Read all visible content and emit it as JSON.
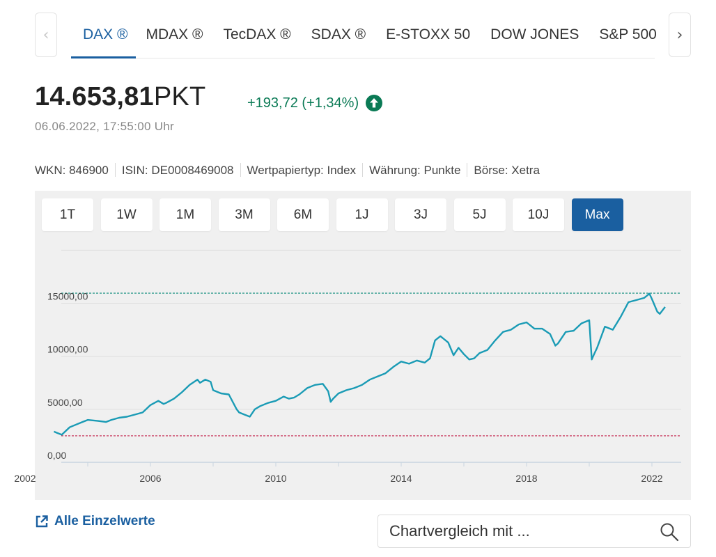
{
  "tabs": [
    {
      "label": "DAX ®",
      "active": true
    },
    {
      "label": "MDAX ®",
      "active": false
    },
    {
      "label": "TecDAX ®",
      "active": false
    },
    {
      "label": "SDAX ®",
      "active": false
    },
    {
      "label": "E-STOXX 50",
      "active": false
    },
    {
      "label": "DOW JONES",
      "active": false
    },
    {
      "label": "S&P 500",
      "active": false
    }
  ],
  "nav": {
    "prev_icon": "chevron-left-icon",
    "next_icon": "chevron-right-icon"
  },
  "quote": {
    "value": "14.653,81",
    "unit": "PKT",
    "change": "+193,72 (+1,34%)",
    "datetime": "06.06.2022, 17:55:00 Uhr",
    "trend_icon": "arrow-up-circle-icon"
  },
  "meta": {
    "wkn": "WKN: 846900",
    "isin": "ISIN: DE0008469008",
    "type": "Wertpapiertyp: Index",
    "currency": "Währung: Punkte",
    "exchange": "Börse: Xetra"
  },
  "ranges": [
    {
      "label": "1T",
      "active": false
    },
    {
      "label": "1W",
      "active": false
    },
    {
      "label": "1M",
      "active": false
    },
    {
      "label": "3M",
      "active": false
    },
    {
      "label": "6M",
      "active": false
    },
    {
      "label": "1J",
      "active": false
    },
    {
      "label": "3J",
      "active": false
    },
    {
      "label": "5J",
      "active": false
    },
    {
      "label": "10J",
      "active": false
    },
    {
      "label": "Max",
      "active": true
    }
  ],
  "chart_data": {
    "type": "line",
    "title": "",
    "xlabel": "",
    "ylabel": "",
    "x_ticks": [
      "2002",
      "2006",
      "2010",
      "2014",
      "2018",
      "2022"
    ],
    "y_ticks": [
      "0,00",
      "5000,00",
      "10000,00",
      "15000,00"
    ],
    "xlim": [
      2002.0,
      2022.5
    ],
    "ylim": [
      0,
      20000
    ],
    "grid": true,
    "legend": "none",
    "line_color": "#1a9bb5",
    "max_line": {
      "value": 15950,
      "color": "#0a8a7a"
    },
    "min_line": {
      "value": 2500,
      "color": "#c4214a"
    },
    "series": [
      {
        "x": [
          2002.92,
          2003.0,
          2003.17,
          2003.42,
          2003.5,
          2003.83,
          2004.0,
          2004.33,
          2004.58,
          2004.75,
          2005.0,
          2005.25,
          2005.5,
          2005.75,
          2006.0,
          2006.25,
          2006.42,
          2006.5,
          2006.75,
          2007.0,
          2007.25,
          2007.5,
          2007.58,
          2007.75,
          2007.92,
          2008.0,
          2008.25,
          2008.5,
          2008.75,
          2008.83,
          2009.0,
          2009.17,
          2009.33,
          2009.5,
          2009.75,
          2010.0,
          2010.25,
          2010.42,
          2010.58,
          2010.75,
          2011.0,
          2011.25,
          2011.5,
          2011.67,
          2011.75,
          2011.83,
          2012.0,
          2012.25,
          2012.5,
          2012.75,
          2013.0,
          2013.25,
          2013.5,
          2013.75,
          2014.0,
          2014.25,
          2014.5,
          2014.75,
          2014.92,
          2015.08,
          2015.25,
          2015.5,
          2015.67,
          2015.83,
          2016.0,
          2016.17,
          2016.33,
          2016.5,
          2016.75,
          2017.0,
          2017.25,
          2017.5,
          2017.75,
          2018.0,
          2018.25,
          2018.5,
          2018.75,
          2018.92,
          2019.0,
          2019.25,
          2019.5,
          2019.75,
          2020.0,
          2020.08,
          2020.17,
          2020.25,
          2020.5,
          2020.75,
          2021.0,
          2021.25,
          2021.5,
          2021.75,
          2021.92,
          2022.0,
          2022.17,
          2022.25,
          2022.42
        ],
        "values": [
          2900,
          2800,
          2600,
          3300,
          3400,
          3800,
          4000,
          3900,
          3800,
          4000,
          4200,
          4300,
          4500,
          4700,
          5400,
          5800,
          5500,
          5600,
          6000,
          6600,
          7300,
          7800,
          7500,
          7800,
          7600,
          6800,
          6500,
          6400,
          5000,
          4700,
          4500,
          4300,
          5000,
          5300,
          5600,
          5800,
          6200,
          6000,
          6100,
          6400,
          7000,
          7300,
          7400,
          6700,
          5700,
          6000,
          6500,
          6800,
          7000,
          7300,
          7800,
          8100,
          8400,
          9000,
          9500,
          9300,
          9600,
          9400,
          9800,
          11500,
          11900,
          11300,
          10100,
          10800,
          10200,
          9700,
          9800,
          10300,
          10600,
          11500,
          12300,
          12500,
          13000,
          13200,
          12600,
          12600,
          12100,
          11000,
          11200,
          12300,
          12400,
          13100,
          13400,
          9700,
          10300,
          10800,
          12800,
          12500,
          13700,
          15100,
          15300,
          15500,
          15900,
          15400,
          14200,
          14000,
          14650
        ]
      }
    ]
  },
  "footer": {
    "all_link_label": "Alle Einzelwerte",
    "all_link_icon": "external-link-icon",
    "compare_placeholder": "Chartvergleich mit ...",
    "search_icon": "search-icon"
  }
}
